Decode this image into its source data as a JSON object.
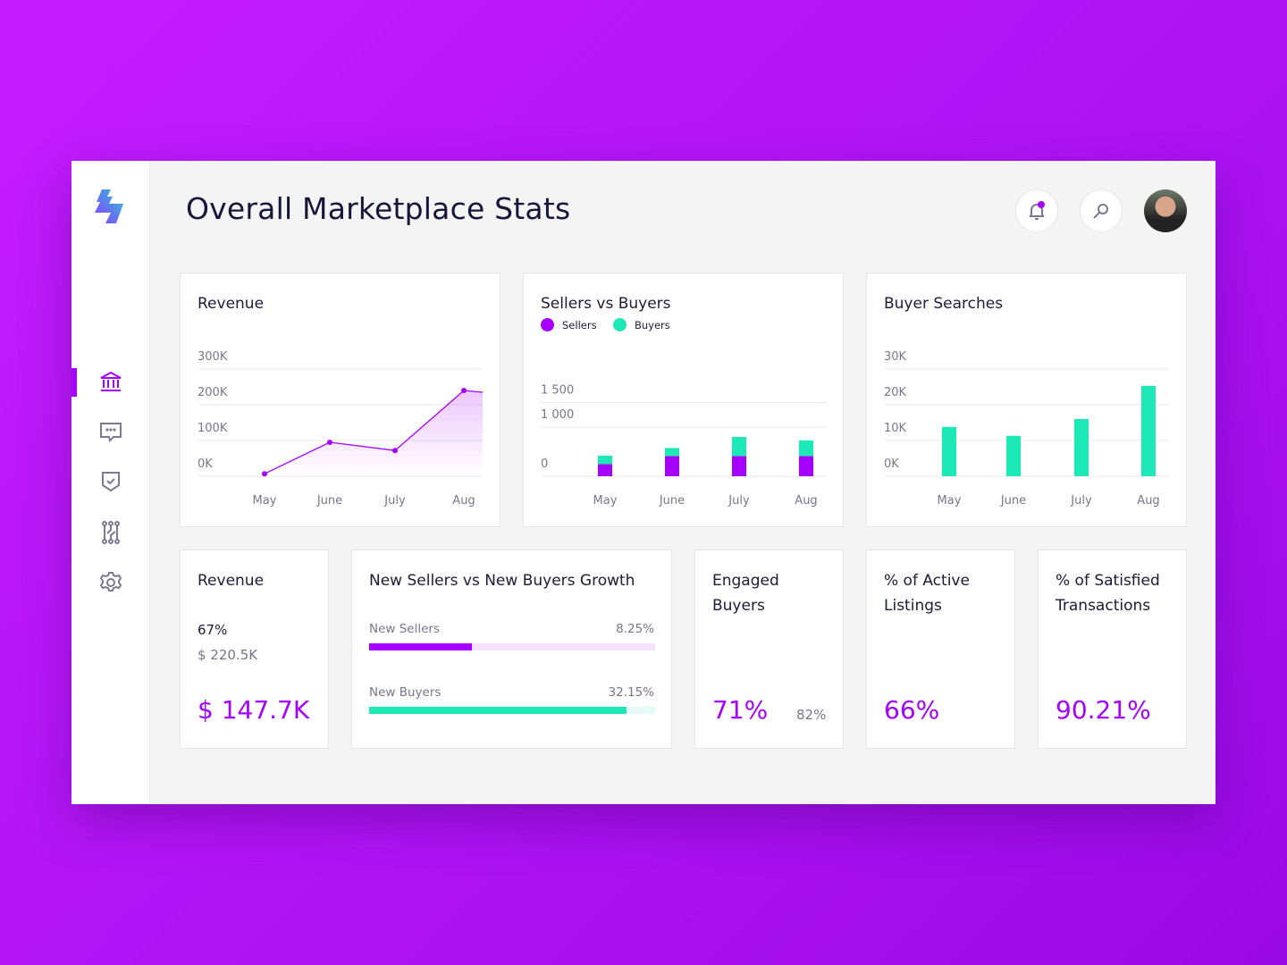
{
  "header": {
    "title": "Overall Marketplace Stats",
    "notification_dot_color": "#a600ff"
  },
  "sidebar": {
    "items": [
      {
        "icon": "bank-icon",
        "active": true
      },
      {
        "icon": "chat-icon"
      },
      {
        "icon": "shield-check-icon"
      },
      {
        "icon": "circuit-icon"
      },
      {
        "icon": "gear-icon"
      }
    ]
  },
  "colors": {
    "accent": "#a600ff",
    "secondary": "#1de9b6"
  },
  "chart_data": [
    {
      "type": "area",
      "title": "Revenue",
      "categories": [
        "May",
        "June",
        "July",
        "Aug"
      ],
      "y_ticks": [
        "0K",
        "100K",
        "200K",
        "300K"
      ],
      "ylim": [
        0,
        300000
      ],
      "values": [
        7000,
        95000,
        72000,
        240000
      ],
      "trailing_value": 235000,
      "grid": true
    },
    {
      "type": "bar",
      "stacked": true,
      "title": "Sellers vs Buyers",
      "categories": [
        "May",
        "June",
        "July",
        "Aug"
      ],
      "y_ticks": [
        "0",
        "1 000",
        "1 500"
      ],
      "ylim": [
        0,
        1500
      ],
      "series": [
        {
          "name": "Sellers",
          "color": "#a600ff",
          "values": [
            245,
            410,
            410,
            410
          ]
        },
        {
          "name": "Buyers",
          "color": "#1de9b6",
          "values": [
            175,
            165,
            390,
            320
          ]
        }
      ],
      "legend": "top-left",
      "grid": true
    },
    {
      "type": "bar",
      "title": "Buyer Searches",
      "categories": [
        "May",
        "June",
        "July",
        "Aug"
      ],
      "y_ticks": [
        "0K",
        "10K",
        "20K",
        "30K"
      ],
      "ylim": [
        0,
        30000
      ],
      "values": [
        13800,
        11300,
        16000,
        25300
      ],
      "color": "#1de9b6",
      "grid": true
    }
  ],
  "stats": {
    "revenue": {
      "title": "Revenue",
      "percent": "67%",
      "target": "$ 220.5K",
      "value": "$ 147.7K"
    },
    "growth": {
      "title": "New Sellers vs New Buyers Growth",
      "bars": [
        {
          "label": "New Sellers",
          "value": "8.25%",
          "fill": 36
        },
        {
          "label": "New Buyers",
          "value": "32.15%",
          "fill": 90
        }
      ]
    },
    "engaged": {
      "title": "Engaged Buyers",
      "value": "71%",
      "secondary": "82%"
    },
    "active": {
      "title": "% of Active Listings",
      "value": "66%"
    },
    "satisfied": {
      "title": "% of Satisfied Transactions",
      "value": "90.21%"
    }
  }
}
